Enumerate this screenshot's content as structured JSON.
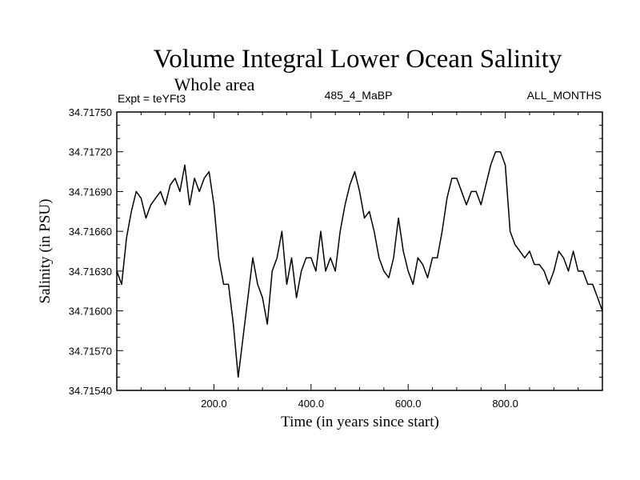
{
  "chart_data": {
    "type": "line",
    "title": "Volume Integral Lower Ocean Salinity",
    "subtitle": "Whole area",
    "expt_label": "Expt = teYFt3",
    "run_label": "485_4_MaBP",
    "period_label": "ALL_MONTHS",
    "xlabel": "Time (in years since start)",
    "ylabel": "Salinity (in PSU)",
    "xlim": [
      0,
      1000
    ],
    "ylim": [
      34.7154,
      34.7175
    ],
    "x_ticks": [
      200,
      400,
      600,
      800
    ],
    "x_tick_labels": [
      "200.0",
      "400.0",
      "600.0",
      "800.0"
    ],
    "y_ticks": [
      34.7154,
      34.7157,
      34.716,
      34.7163,
      34.7166,
      34.7169,
      34.7172,
      34.7175
    ],
    "y_tick_labels": [
      "34.71540",
      "34.71570",
      "34.71600",
      "34.71630",
      "34.71660",
      "34.71690",
      "34.71720",
      "34.71750"
    ],
    "x_minor_step": 50,
    "y_minor_step": 0.0001,
    "grid": false,
    "series": [
      {
        "name": "Salinity",
        "color": "#000000",
        "x": [
          0,
          10,
          20,
          30,
          40,
          50,
          60,
          70,
          80,
          90,
          100,
          110,
          120,
          130,
          140,
          150,
          160,
          170,
          180,
          190,
          200,
          210,
          220,
          230,
          240,
          250,
          260,
          270,
          280,
          290,
          300,
          310,
          320,
          330,
          340,
          350,
          360,
          370,
          380,
          390,
          400,
          410,
          420,
          430,
          440,
          450,
          460,
          470,
          480,
          490,
          500,
          510,
          520,
          530,
          540,
          550,
          560,
          570,
          580,
          590,
          600,
          610,
          620,
          630,
          640,
          650,
          660,
          670,
          680,
          690,
          700,
          710,
          720,
          730,
          740,
          750,
          760,
          770,
          780,
          790,
          800,
          810,
          820,
          830,
          840,
          850,
          860,
          870,
          880,
          890,
          900,
          910,
          920,
          930,
          940,
          950,
          960,
          970,
          980,
          990,
          1000
        ],
        "values": [
          34.7163,
          34.7162,
          34.71655,
          34.71675,
          34.7169,
          34.71685,
          34.7167,
          34.7168,
          34.71685,
          34.7169,
          34.7168,
          34.71695,
          34.717,
          34.7169,
          34.7171,
          34.7168,
          34.717,
          34.7169,
          34.717,
          34.71705,
          34.7168,
          34.7164,
          34.7162,
          34.7162,
          34.7159,
          34.7155,
          34.7158,
          34.7161,
          34.7164,
          34.7162,
          34.7161,
          34.7159,
          34.7163,
          34.7164,
          34.7166,
          34.7162,
          34.7164,
          34.7161,
          34.7163,
          34.7164,
          34.7164,
          34.7163,
          34.7166,
          34.7163,
          34.7164,
          34.7163,
          34.7166,
          34.7168,
          34.71695,
          34.71705,
          34.7169,
          34.7167,
          34.71675,
          34.7166,
          34.7164,
          34.7163,
          34.71625,
          34.7164,
          34.7167,
          34.71645,
          34.7163,
          34.7162,
          34.7164,
          34.71635,
          34.71625,
          34.7164,
          34.7164,
          34.7166,
          34.71685,
          34.717,
          34.717,
          34.7169,
          34.7168,
          34.7169,
          34.7169,
          34.7168,
          34.71695,
          34.7171,
          34.7172,
          34.7172,
          34.7171,
          34.7166,
          34.7165,
          34.71645,
          34.7164,
          34.71645,
          34.71635,
          34.71635,
          34.7163,
          34.7162,
          34.7163,
          34.71645,
          34.7164,
          34.7163,
          34.71645,
          34.7163,
          34.7163,
          34.7162,
          34.7162,
          34.7161,
          34.716
        ]
      }
    ]
  }
}
